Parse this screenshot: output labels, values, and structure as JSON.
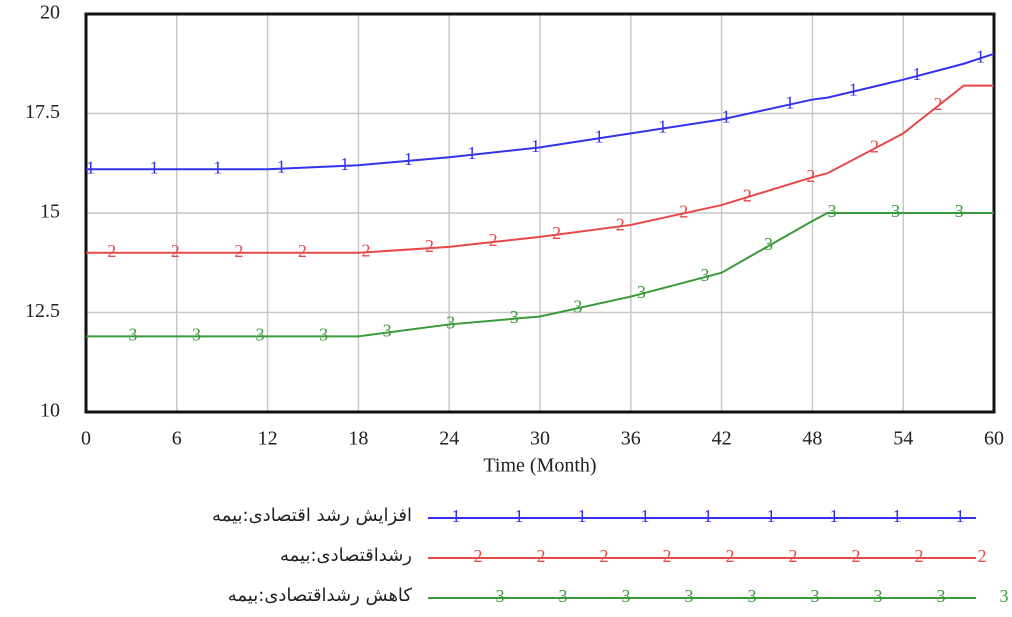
{
  "chart_data": {
    "type": "line",
    "x_label": "Time (Month)",
    "x": [
      0,
      6,
      12,
      18,
      24,
      30,
      36,
      42,
      48,
      49,
      54,
      58,
      60
    ],
    "series": [
      {
        "name": "افزایش رشد اقتصادی:بیمه",
        "marker": "1",
        "color": "#3333ee",
        "values": [
          16.1,
          16.1,
          16.1,
          16.2,
          16.4,
          16.65,
          17.0,
          17.35,
          17.85,
          17.9,
          18.35,
          18.75,
          19.0
        ]
      },
      {
        "name": "رشداقتصادی:بیمه",
        "marker": "2",
        "color": "#e84848",
        "values": [
          14.0,
          14.0,
          14.0,
          14.0,
          14.15,
          14.4,
          14.7,
          15.2,
          15.9,
          16.0,
          17.0,
          18.2,
          18.2
        ]
      },
      {
        "name": "کاهش رشداقتصادی:بیمه",
        "marker": "3",
        "color": "#3a9a3a",
        "values": [
          11.9,
          11.9,
          11.9,
          11.9,
          12.2,
          12.4,
          12.9,
          13.5,
          14.8,
          15.0,
          15.0,
          15.0,
          15.0
        ]
      }
    ],
    "xlim": [
      0,
      60
    ],
    "xticks": [
      0,
      6,
      12,
      18,
      24,
      30,
      36,
      42,
      48,
      54,
      60
    ],
    "ylim": [
      10,
      20
    ],
    "yticks": [
      10,
      12.5,
      15,
      17.5,
      20
    ],
    "grid": true
  }
}
